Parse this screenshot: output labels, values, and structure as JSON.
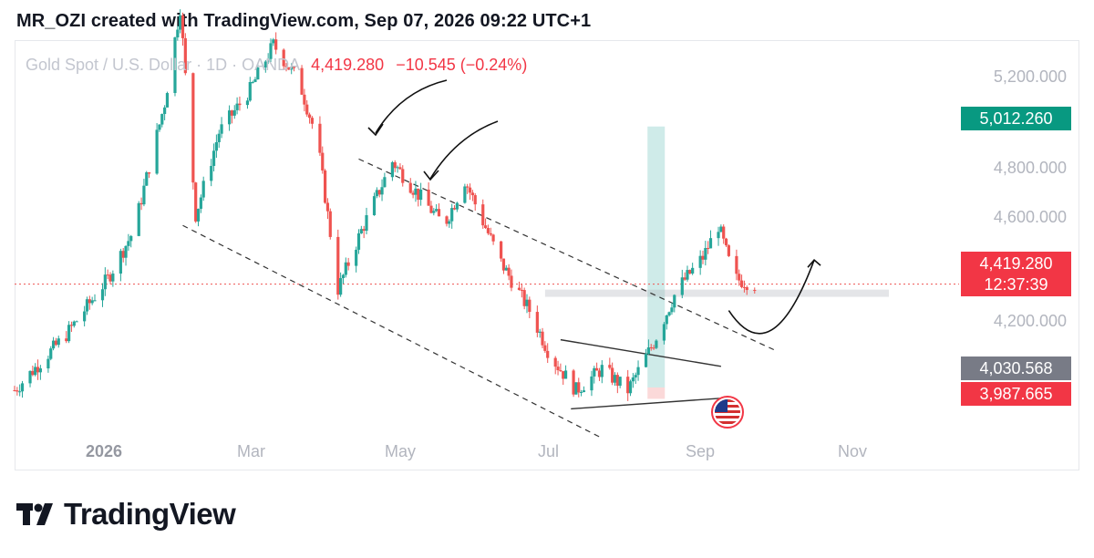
{
  "header": {
    "created_by": "MR_OZI created with TradingView.com, Sep 07, 2026 09:22 UTC+1"
  },
  "legend": {
    "symbol": "Gold Spot / U.S. Dollar · 1D · OANDA",
    "last_price": "4,419.280",
    "change": "−10.545 (−0.24%)"
  },
  "price_axis": {
    "labels": [
      "5,200.000",
      "4,800.000",
      "4,600.000",
      "4,200.000"
    ]
  },
  "badges": {
    "target": "5,012.260",
    "last": "4,419.280",
    "countdown": "12:37:39",
    "stop_upper": "4,030.568",
    "stop_lower": "3,987.665"
  },
  "time_axis": {
    "labels": [
      "2026",
      "Mar",
      "May",
      "Jul",
      "Sep",
      "Nov"
    ]
  },
  "brand": {
    "name": "TradingView"
  },
  "colors": {
    "up": "#26a69a",
    "down": "#ef5350",
    "target_badge": "#089981",
    "last_badge": "#f23645",
    "stop_badge_grey": "#787b86"
  },
  "chart_data": {
    "type": "candlestick",
    "symbol": "XAUUSD",
    "timeframe": "1D",
    "ylim": [
      3900,
      5320
    ],
    "xlim": [
      "2025-11-25",
      "2026-11-25"
    ],
    "last_price": 4419.28,
    "key_levels": {
      "target": 5012.26,
      "stop_upper": 4030.568,
      "stop_lower": 3987.665,
      "support_zone": 4385
    },
    "long_position": {
      "entry_date": "2026-07-29",
      "entry": 4030.568,
      "target": 5012.26,
      "stop": 3987.665
    },
    "channel": {
      "upper": [
        [
          "2026-04-07",
          4890
        ],
        [
          "2026-09-15",
          4170
        ]
      ],
      "lower": [
        [
          "2026-01-29",
          4640
        ],
        [
          "2026-07-10",
          3840
        ]
      ]
    },
    "triangle": {
      "upper": [
        [
          "2026-06-24",
          4210
        ],
        [
          "2026-08-25",
          4110
        ]
      ],
      "lower": [
        [
          "2026-06-28",
          3950
        ],
        [
          "2026-08-25",
          3990
        ]
      ]
    },
    "projection_arrow": [
      [
        "2026-08-28",
        4320
      ],
      [
        "2026-09-17",
        4250
      ],
      [
        "2026-09-30",
        4510
      ]
    ],
    "candles_ohlc_summary": [
      [
        "2025-11-25",
        4020
      ],
      [
        "2025-12-15",
        4230
      ],
      [
        "2025-12-31",
        4440
      ],
      [
        "2026-01-10",
        4620
      ],
      [
        "2026-01-22",
        5100
      ],
      [
        "2026-01-28",
        5460
      ],
      [
        "2026-02-03",
        4680
      ],
      [
        "2026-02-12",
        4990
      ],
      [
        "2026-02-24",
        5150
      ],
      [
        "2026-03-05",
        5320
      ],
      [
        "2026-03-15",
        5180
      ],
      [
        "2026-03-22",
        4960
      ],
      [
        "2026-03-30",
        4400
      ],
      [
        "2026-04-08",
        4620
      ],
      [
        "2026-04-20",
        4880
      ],
      [
        "2026-04-28",
        4780
      ],
      [
        "2026-05-10",
        4640
      ],
      [
        "2026-05-18",
        4810
      ],
      [
        "2026-06-01",
        4500
      ],
      [
        "2026-06-12",
        4320
      ],
      [
        "2026-06-20",
        4150
      ],
      [
        "2026-06-30",
        4020
      ],
      [
        "2026-07-10",
        4100
      ],
      [
        "2026-07-20",
        4020
      ],
      [
        "2026-07-30",
        4200
      ],
      [
        "2026-08-08",
        4400
      ],
      [
        "2026-08-18",
        4520
      ],
      [
        "2026-08-24",
        4640
      ],
      [
        "2026-08-30",
        4440
      ],
      [
        "2026-09-07",
        4419.28
      ]
    ]
  }
}
